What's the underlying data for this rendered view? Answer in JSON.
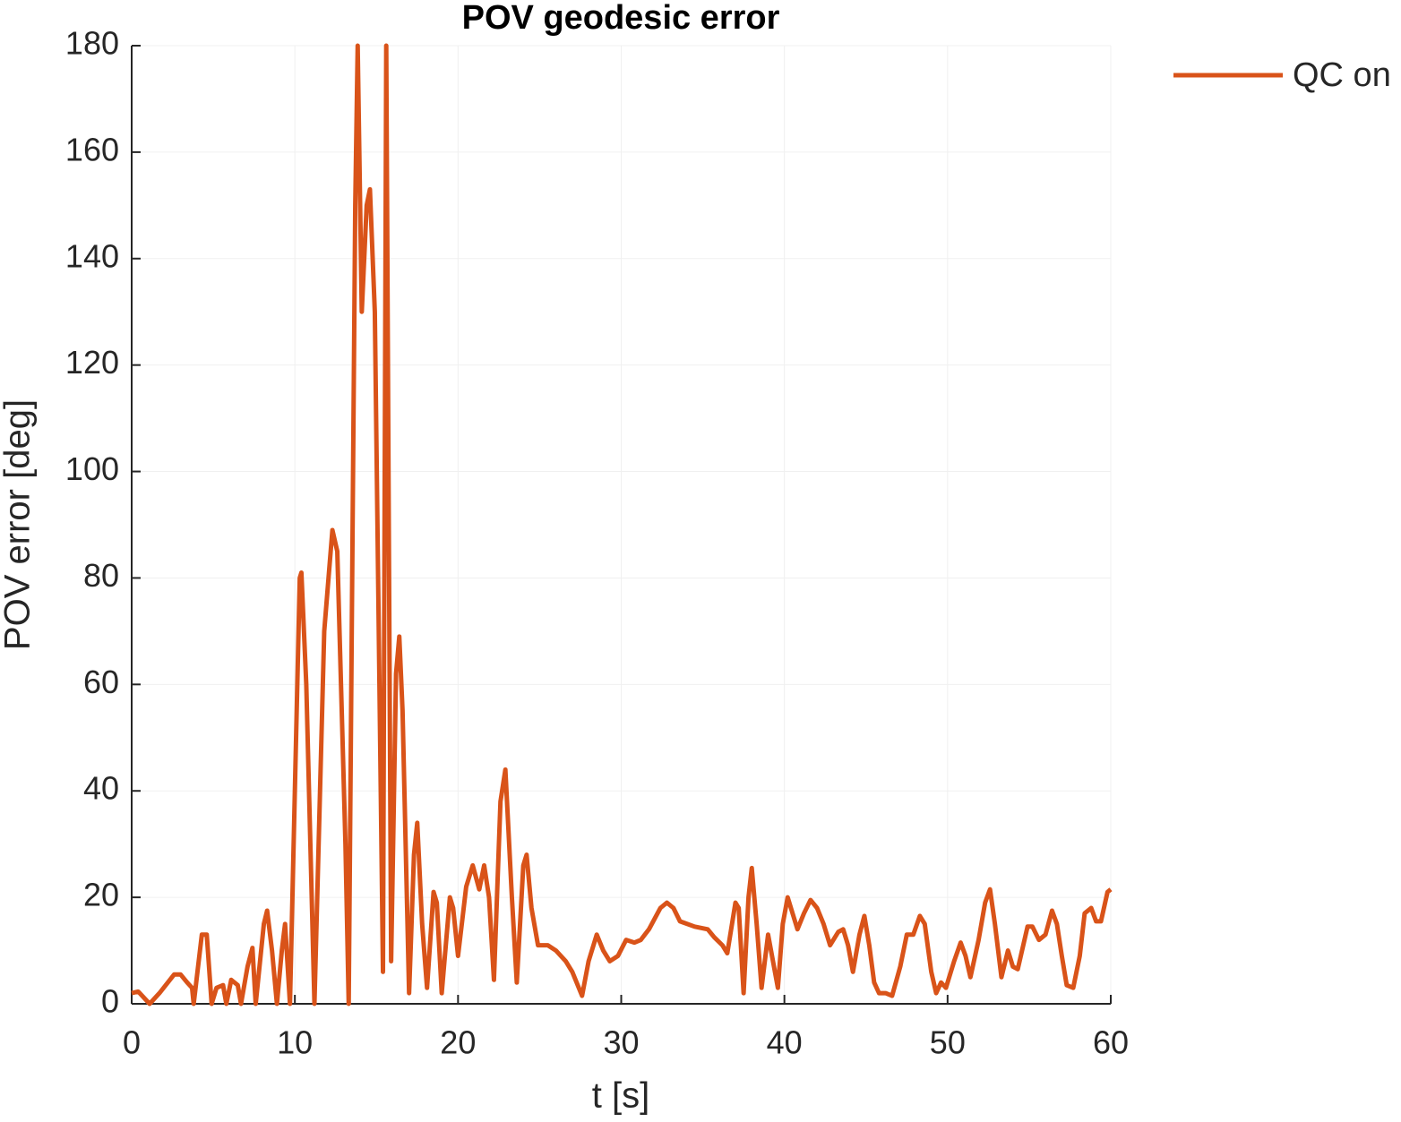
{
  "chart_data": {
    "type": "line",
    "title": "POV geodesic error",
    "xlabel": "t [s]",
    "ylabel": "POV error [deg]",
    "x": [
      0,
      0.4,
      1.1,
      1.7,
      2.6,
      3.0,
      3.4,
      3.7,
      3.8,
      4.3,
      4.6,
      4.9,
      5.2,
      5.6,
      5.8,
      6.1,
      6.5,
      6.7,
      7.1,
      7.4,
      7.6,
      8.1,
      8.3,
      8.6,
      8.9,
      9.2,
      9.4,
      9.7,
      10.3,
      10.4,
      10.7,
      11.2,
      11.8,
      12.3,
      12.6,
      13.1,
      13.3,
      13.7,
      13.85,
      14.1,
      14.4,
      14.6,
      14.9,
      15.4,
      15.6,
      15.9,
      16.2,
      16.4,
      16.6,
      17.0,
      17.3,
      17.5,
      17.8,
      18.1,
      18.5,
      18.7,
      19.0,
      19.5,
      19.7,
      20.0,
      20.5,
      20.9,
      21.3,
      21.6,
      21.9,
      22.2,
      22.6,
      22.9,
      23.3,
      23.6,
      24.0,
      24.2,
      24.5,
      24.9,
      25.5,
      26.0,
      26.6,
      27.0,
      27.6,
      28.0,
      28.5,
      28.9,
      29.3,
      29.8,
      30.3,
      30.8,
      31.2,
      31.7,
      32.4,
      32.8,
      33.2,
      33.6,
      34.5,
      35.3,
      35.7,
      36.2,
      36.5,
      37.0,
      37.2,
      37.5,
      37.8,
      38.0,
      38.3,
      38.6,
      39.0,
      39.3,
      39.6,
      39.9,
      40.2,
      40.5,
      40.8,
      41.2,
      41.6,
      42.0,
      42.4,
      42.8,
      43.3,
      43.6,
      43.9,
      44.2,
      44.6,
      44.9,
      45.2,
      45.5,
      45.8,
      46.2,
      46.6,
      47.1,
      47.5,
      47.9,
      48.3,
      48.6,
      49.0,
      49.3,
      49.6,
      49.9,
      50.4,
      50.8,
      51.1,
      51.4,
      51.9,
      52.3,
      52.6,
      52.9,
      53.3,
      53.7,
      54.0,
      54.3,
      54.9,
      55.2,
      55.6,
      56.0,
      56.4,
      56.7,
      57.0,
      57.3,
      57.7,
      58.1,
      58.4,
      58.8,
      59.1,
      59.4,
      59.8,
      60
    ],
    "series": [
      {
        "name": "QC on",
        "color": "#d95319",
        "values": [
          2,
          2.3,
          0,
          2,
          5.5,
          5.5,
          4,
          3,
          0,
          13,
          13,
          0,
          3,
          3.5,
          0,
          4.5,
          3.5,
          0,
          7,
          10.5,
          0,
          15,
          17.5,
          10,
          0,
          10,
          15,
          0,
          80,
          81,
          60,
          0,
          70,
          89,
          85,
          30,
          0,
          150,
          180,
          130,
          150,
          153,
          130,
          6,
          180,
          8,
          62,
          69,
          55,
          2,
          28,
          34,
          15,
          3,
          21,
          19,
          2,
          20,
          18,
          9,
          22,
          26,
          21.5,
          26,
          20,
          4.5,
          38,
          44,
          20,
          4,
          26,
          28,
          18,
          11,
          11,
          10,
          8,
          6,
          1.5,
          8,
          13,
          10,
          8,
          9,
          12,
          11.5,
          12,
          14,
          18,
          19,
          18,
          15.5,
          14.5,
          14,
          12.5,
          11,
          9.5,
          19,
          18,
          2,
          20,
          25.5,
          15,
          3,
          13,
          8,
          3,
          15,
          20,
          17,
          14,
          17,
          19.5,
          18,
          15,
          11,
          13.5,
          14,
          11,
          6,
          13,
          16.5,
          11,
          4,
          2,
          2,
          1.5,
          7,
          13,
          13,
          16.5,
          15,
          6,
          2,
          4,
          3,
          8,
          11.5,
          9,
          5,
          12,
          19,
          21.5,
          15,
          5,
          10,
          7,
          6.5,
          14.5,
          14.5,
          12,
          13,
          17.5,
          15,
          9,
          3.5,
          3,
          9,
          17,
          18,
          15.5,
          15.5,
          21,
          21.5
        ]
      }
    ],
    "xlim": [
      0,
      60
    ],
    "xticks": [
      0,
      10,
      20,
      30,
      40,
      50,
      60
    ],
    "ylim": [
      0,
      180
    ],
    "yticks": [
      0,
      20,
      40,
      60,
      80,
      100,
      120,
      140,
      160,
      180
    ],
    "grid": true,
    "legend": "outside-top-right"
  }
}
